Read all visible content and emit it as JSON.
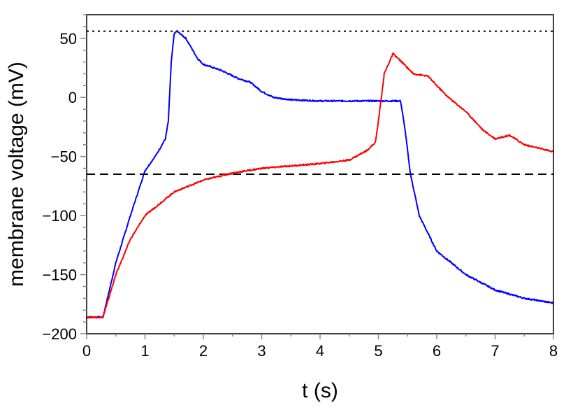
{
  "chart_data": {
    "type": "line",
    "title": "",
    "xlabel": "t (s)",
    "ylabel": "membrane voltage (mV)",
    "xlim": [
      0,
      8
    ],
    "ylim": [
      -200,
      70
    ],
    "xticks": [
      "0",
      "1",
      "2",
      "3",
      "4",
      "5",
      "6",
      "7",
      "8"
    ],
    "yticks": [
      {
        "value": 50,
        "label": "50"
      },
      {
        "value": 0,
        "label": "0"
      },
      {
        "value": -50,
        "label": "−50"
      },
      {
        "value": -100,
        "label": "−100"
      },
      {
        "value": -150,
        "label": "−150"
      },
      {
        "value": -200,
        "label": "−200"
      }
    ],
    "grid": false,
    "legend": "none",
    "reference_lines": [
      {
        "y": 56,
        "style": "dotted",
        "color": "#000000"
      },
      {
        "y": -65,
        "style": "dashed",
        "color": "#000000"
      }
    ],
    "series": [
      {
        "color": "#0000ff",
        "x": [
          0,
          0.28,
          0.5,
          0.75,
          1.0,
          1.2,
          1.35,
          1.4,
          1.45,
          1.5,
          1.55,
          1.7,
          1.9,
          2.0,
          2.3,
          2.6,
          2.8,
          3.0,
          3.2,
          3.5,
          4.0,
          5.0,
          5.38,
          5.45,
          5.55,
          5.7,
          6.0,
          6.5,
          7.0,
          7.5,
          8.0
        ],
        "y": [
          -186,
          -186,
          -140,
          -100,
          -62,
          -48,
          -35,
          -20,
          30,
          54,
          56,
          50,
          33,
          28,
          23,
          16,
          13,
          5,
          0,
          -2,
          -3,
          -3,
          -3,
          -25,
          -65,
          -100,
          -130,
          -150,
          -163,
          -170,
          -174
        ]
      },
      {
        "color": "#ff0000",
        "x": [
          0,
          0.28,
          0.5,
          0.75,
          1.0,
          1.5,
          2.0,
          2.5,
          3.0,
          4.0,
          4.5,
          4.8,
          4.95,
          5.0,
          5.1,
          5.25,
          5.4,
          5.6,
          5.85,
          6.0,
          6.2,
          6.5,
          6.8,
          7.0,
          7.25,
          7.5,
          8.0
        ],
        "y": [
          -186,
          -186,
          -150,
          -120,
          -100,
          -80,
          -70,
          -64,
          -60,
          -56,
          -53,
          -45,
          -38,
          -20,
          20,
          37,
          30,
          20,
          18,
          10,
          0,
          -12,
          -28,
          -35,
          -32,
          -40,
          -46
        ]
      }
    ]
  }
}
